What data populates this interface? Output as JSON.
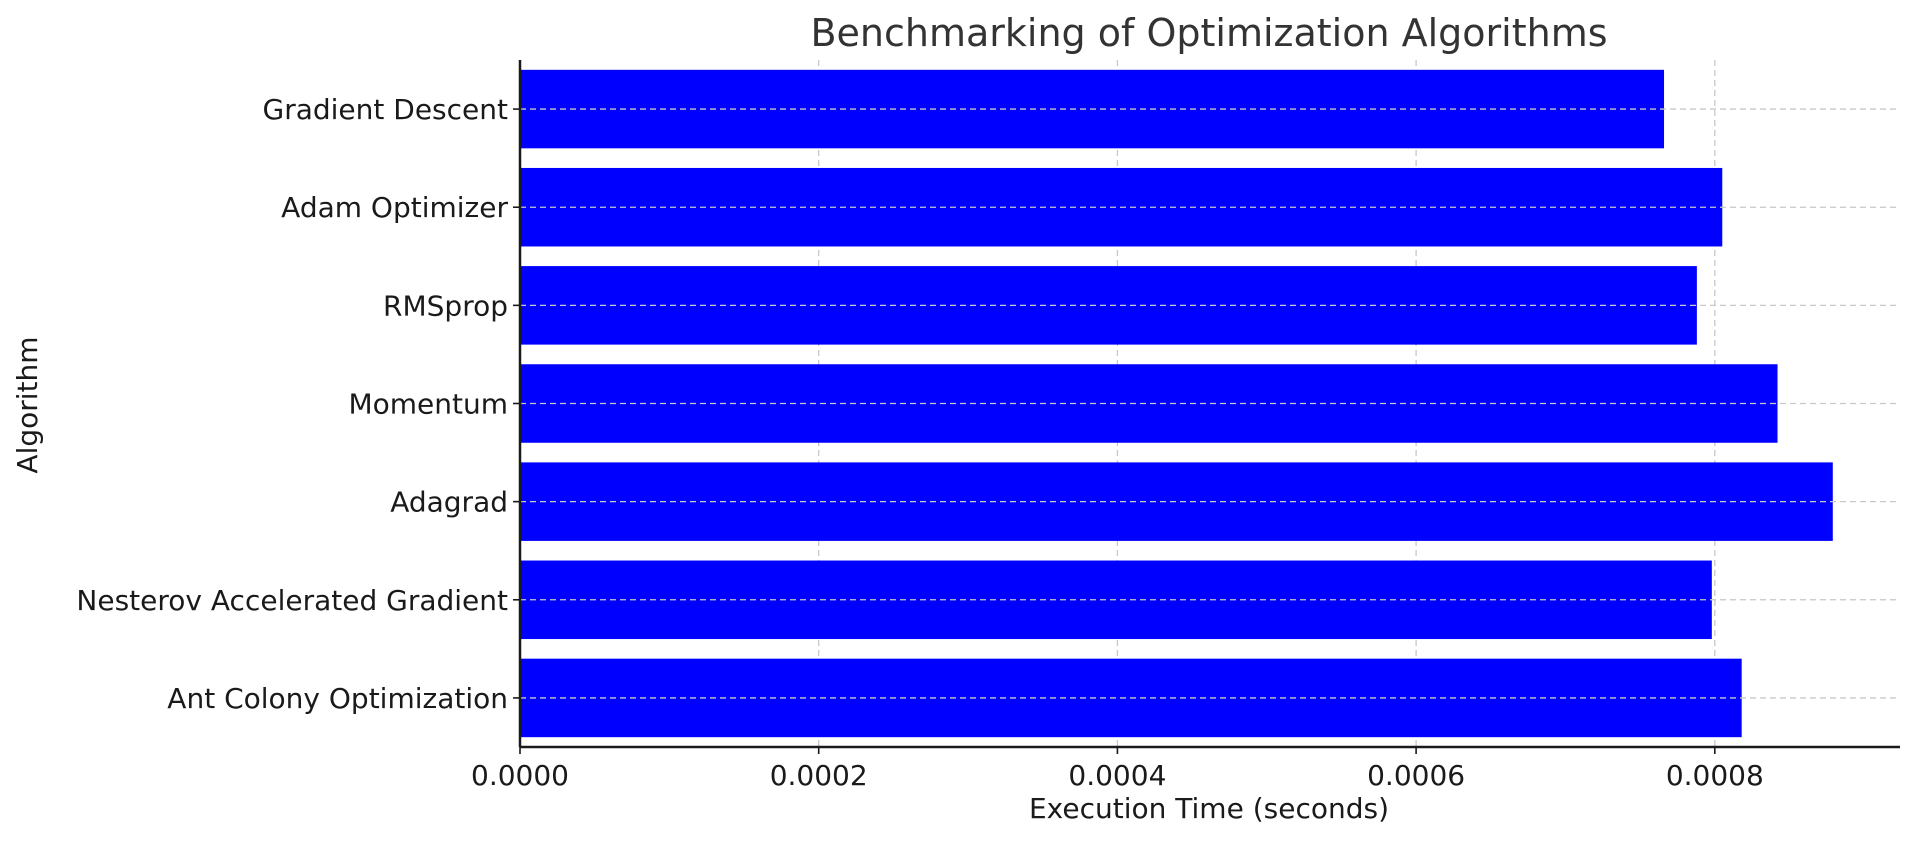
{
  "chart_data": {
    "type": "bar",
    "orientation": "horizontal",
    "title": "Benchmarking of Optimization Algorithms",
    "xlabel": "Execution Time (seconds)",
    "ylabel": "Algorithm",
    "categories": [
      "Gradient Descent",
      "Adam Optimizer",
      "RMSprop",
      "Momentum",
      "Adagrad",
      "Nesterov Accelerated Gradient",
      "Ant Colony Optimization"
    ],
    "values": [
      0.000766,
      0.000805,
      0.000788,
      0.000842,
      0.000879,
      0.000798,
      0.000818
    ],
    "xlim": [
      0,
      0.000924
    ],
    "xticks": [
      0,
      0.0002,
      0.0004,
      0.0006,
      0.0008
    ],
    "xtick_labels": [
      "0.0000",
      "0.0002",
      "0.0004",
      "0.0006",
      "0.0008"
    ],
    "bar_color": "#0000ff",
    "grid": true,
    "spines": [
      "left",
      "bottom"
    ]
  }
}
